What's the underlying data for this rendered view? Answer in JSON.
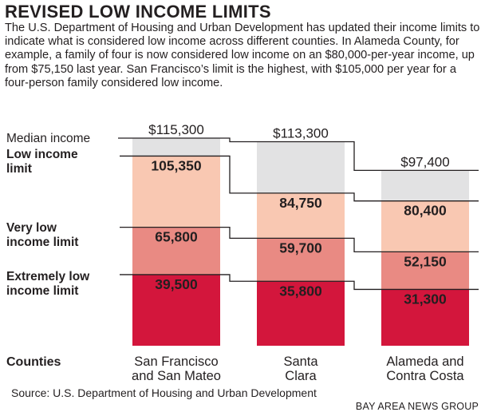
{
  "header": {
    "title": "REVISED LOW INCOME LIMITS",
    "intro": "The U.S. Department of Housing and Urban Development has updated their income limits to indicate what is considered low income across different counties. In Alameda County, for example, a family of four is now considered low income on an $80,000-per-year income, up from $75,150 last year. San Francisco’s limit is the highest, with $105,000 per year for a four-person family considered low income."
  },
  "footer": {
    "source": "Source: U.S. Department of Housing and Urban Development",
    "credit": "BAY AREA NEWS GROUP"
  },
  "colors": {
    "median": "#e2e2e3",
    "low": "#f9c8b2",
    "very_low": "#e98a83",
    "extremely_low": "#d3163c",
    "line": "#231f20"
  },
  "chart_data": {
    "type": "bar",
    "title": "REVISED LOW INCOME LIMITS",
    "xlabel": "Counties",
    "ylabel": "",
    "ylim": [
      0,
      115300
    ],
    "categories": [
      [
        "San Francisco",
        "and San Mateo"
      ],
      [
        "Santa",
        "Clara"
      ],
      [
        "Alameda and",
        "Contra Costa"
      ]
    ],
    "series": [
      {
        "key": "median",
        "name": "Median income",
        "values": [
          115300,
          113300,
          97400
        ],
        "labels": [
          "$115,300",
          "$113,300",
          "$97,400"
        ]
      },
      {
        "key": "low",
        "name": "Low income limit",
        "values": [
          105350,
          84750,
          80400
        ],
        "labels": [
          "105,350",
          "84,750",
          "80,400"
        ]
      },
      {
        "key": "very_low",
        "name": "Very low income limit",
        "values": [
          65800,
          59700,
          52150
        ],
        "labels": [
          "65,800",
          "59,700",
          "52,150"
        ]
      },
      {
        "key": "extremely_low",
        "name": "Extremely low income limit",
        "values": [
          39500,
          35800,
          31300
        ],
        "labels": [
          "39,500",
          "35,800",
          "31,300"
        ]
      }
    ],
    "legend_labels": {
      "median": [
        "Median income"
      ],
      "low": [
        "Low income",
        "limit"
      ],
      "very_low": [
        "Very low",
        "income limit"
      ],
      "extremely_low": [
        "Extremely low",
        "income limit"
      ]
    }
  }
}
